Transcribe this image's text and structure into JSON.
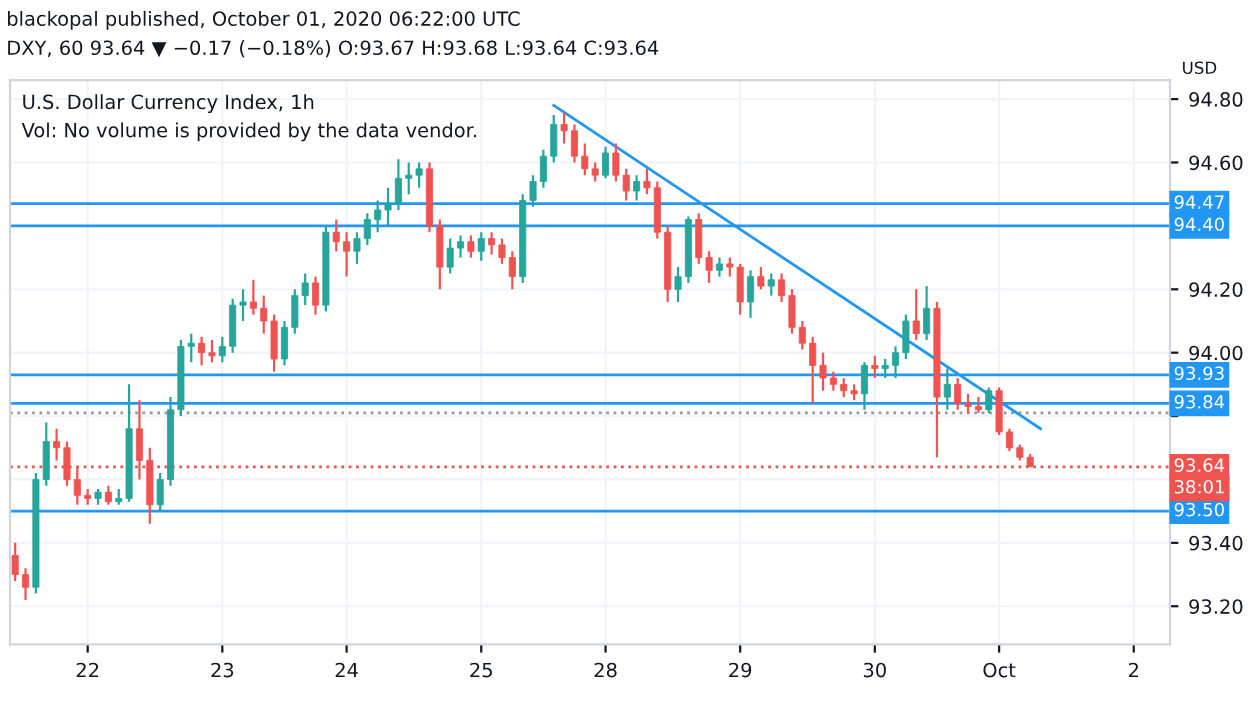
{
  "chart_data": {
    "type": "candlestick",
    "title": "U.S. Dollar Currency Index, 1h",
    "ylabel": "USD",
    "annotations": [
      "blackopal published, October 01, 2020 06:22:00 UTC",
      "DXY, 60 93.64 ▼ −0.17 (−0.18%) O:93.67 H:93.68 L:93.64 C:93.64",
      "Vol: No volume is provided by the data vendor.",
      "38:01"
    ],
    "categories": [
      null,
      null,
      null,
      null,
      null,
      null,
      null,
      "22",
      null,
      null,
      null,
      null,
      null,
      null,
      null,
      null,
      null,
      null,
      null,
      null,
      "23",
      null,
      null,
      null,
      null,
      null,
      null,
      null,
      null,
      null,
      null,
      null,
      "24",
      null,
      null,
      null,
      null,
      null,
      null,
      null,
      null,
      null,
      null,
      null,
      null,
      "25",
      null,
      null,
      null,
      null,
      null,
      null,
      null,
      null,
      null,
      null,
      null,
      "28",
      null,
      null,
      null,
      null,
      null,
      null,
      null,
      null,
      null,
      null,
      null,
      null,
      "29",
      null,
      null,
      null,
      null,
      null,
      null,
      null,
      null,
      null,
      null,
      null,
      null,
      "30",
      null,
      null,
      null,
      null,
      null,
      null,
      null,
      null,
      null,
      null,
      null,
      "Oct",
      null,
      null,
      null,
      null,
      null,
      null,
      null,
      null,
      null,
      null,
      null,
      null,
      "2",
      null,
      null,
      null
    ],
    "ohlc": [
      [
        93.36,
        93.4,
        93.28,
        93.3
      ],
      [
        93.3,
        93.32,
        93.22,
        93.26
      ],
      [
        93.26,
        93.62,
        93.24,
        93.6
      ],
      [
        93.6,
        93.78,
        93.58,
        93.72
      ],
      [
        93.72,
        93.76,
        93.66,
        93.7
      ],
      [
        93.7,
        93.72,
        93.58,
        93.6
      ],
      [
        93.6,
        93.64,
        93.52,
        93.55
      ],
      [
        93.55,
        93.57,
        93.52,
        93.54
      ],
      [
        93.54,
        93.57,
        93.52,
        93.56
      ],
      [
        93.56,
        93.58,
        93.52,
        93.53
      ],
      [
        93.53,
        93.57,
        93.52,
        93.54
      ],
      [
        93.54,
        93.9,
        93.53,
        93.76
      ],
      [
        93.76,
        93.85,
        93.6,
        93.66
      ],
      [
        93.66,
        93.7,
        93.46,
        93.52
      ],
      [
        93.52,
        93.62,
        93.5,
        93.6
      ],
      [
        93.6,
        93.86,
        93.58,
        93.82
      ],
      [
        93.82,
        94.04,
        93.8,
        94.02
      ],
      [
        94.02,
        94.06,
        93.97,
        94.03
      ],
      [
        94.03,
        94.05,
        93.96,
        94.0
      ],
      [
        94.0,
        94.04,
        93.97,
        93.99
      ],
      [
        93.99,
        94.05,
        93.97,
        94.02
      ],
      [
        94.02,
        94.17,
        94.0,
        94.15
      ],
      [
        94.15,
        94.2,
        94.1,
        94.16
      ],
      [
        94.16,
        94.23,
        94.12,
        94.14
      ],
      [
        94.14,
        94.18,
        94.06,
        94.1
      ],
      [
        94.1,
        94.12,
        93.94,
        93.98
      ],
      [
        93.98,
        94.1,
        93.96,
        94.08
      ],
      [
        94.08,
        94.2,
        94.06,
        94.18
      ],
      [
        94.18,
        94.25,
        94.15,
        94.22
      ],
      [
        94.22,
        94.24,
        94.12,
        94.15
      ],
      [
        94.15,
        94.4,
        94.13,
        94.38
      ],
      [
        94.38,
        94.42,
        94.32,
        94.35
      ],
      [
        94.35,
        94.38,
        94.24,
        94.32
      ],
      [
        94.32,
        94.38,
        94.28,
        94.36
      ],
      [
        94.36,
        94.44,
        94.34,
        94.42
      ],
      [
        94.42,
        94.48,
        94.38,
        94.45
      ],
      [
        94.45,
        94.52,
        94.4,
        94.47
      ],
      [
        94.47,
        94.61,
        94.45,
        94.55
      ],
      [
        94.55,
        94.6,
        94.5,
        94.56
      ],
      [
        94.56,
        94.6,
        94.52,
        94.58
      ],
      [
        94.58,
        94.6,
        94.38,
        94.4
      ],
      [
        94.4,
        94.42,
        94.2,
        94.27
      ],
      [
        94.27,
        94.36,
        94.25,
        94.33
      ],
      [
        94.33,
        94.37,
        94.3,
        94.35
      ],
      [
        94.35,
        94.37,
        94.3,
        94.32
      ],
      [
        94.32,
        94.38,
        94.29,
        94.36
      ],
      [
        94.36,
        94.38,
        94.31,
        94.34
      ],
      [
        94.34,
        94.36,
        94.28,
        94.3
      ],
      [
        94.3,
        94.32,
        94.2,
        94.24
      ],
      [
        94.24,
        94.5,
        94.22,
        94.48
      ],
      [
        94.48,
        94.56,
        94.46,
        94.54
      ],
      [
        94.54,
        94.64,
        94.52,
        94.62
      ],
      [
        94.62,
        94.75,
        94.6,
        94.72
      ],
      [
        94.72,
        94.76,
        94.66,
        94.7
      ],
      [
        94.7,
        94.72,
        94.6,
        94.62
      ],
      [
        94.62,
        94.66,
        94.56,
        94.58
      ],
      [
        94.58,
        94.6,
        94.54,
        94.56
      ],
      [
        94.56,
        94.65,
        94.55,
        94.63
      ],
      [
        94.63,
        94.66,
        94.54,
        94.56
      ],
      [
        94.56,
        94.58,
        94.48,
        94.51
      ],
      [
        94.51,
        94.56,
        94.48,
        94.54
      ],
      [
        94.54,
        94.58,
        94.5,
        94.52
      ],
      [
        94.52,
        94.54,
        94.36,
        94.38
      ],
      [
        94.38,
        94.4,
        94.16,
        94.2
      ],
      [
        94.2,
        94.27,
        94.16,
        94.24
      ],
      [
        94.24,
        94.43,
        94.22,
        94.42
      ],
      [
        94.42,
        94.44,
        94.28,
        94.3
      ],
      [
        94.3,
        94.32,
        94.22,
        94.26
      ],
      [
        94.26,
        94.3,
        94.24,
        94.28
      ],
      [
        94.28,
        94.3,
        94.24,
        94.27
      ],
      [
        94.27,
        94.28,
        94.12,
        94.16
      ],
      [
        94.16,
        94.26,
        94.11,
        94.24
      ],
      [
        94.24,
        94.27,
        94.2,
        94.21
      ],
      [
        94.21,
        94.25,
        94.18,
        94.23
      ],
      [
        94.23,
        94.25,
        94.16,
        94.18
      ],
      [
        94.18,
        94.2,
        94.06,
        94.08
      ],
      [
        94.08,
        94.1,
        94.01,
        94.03
      ],
      [
        94.03,
        94.05,
        93.84,
        93.96
      ],
      [
        93.96,
        94.0,
        93.88,
        93.92
      ],
      [
        93.92,
        93.94,
        93.88,
        93.9
      ],
      [
        93.9,
        93.92,
        93.86,
        93.88
      ],
      [
        93.88,
        93.9,
        93.85,
        93.87
      ],
      [
        93.87,
        93.97,
        93.82,
        93.96
      ],
      [
        93.96,
        93.99,
        93.92,
        93.95
      ],
      [
        93.95,
        93.98,
        93.92,
        93.96
      ],
      [
        93.96,
        94.02,
        93.92,
        94.0
      ],
      [
        94.0,
        94.12,
        93.98,
        94.1
      ],
      [
        94.1,
        94.2,
        94.04,
        94.06
      ],
      [
        94.06,
        94.21,
        94.04,
        94.14
      ],
      [
        94.14,
        94.16,
        93.67,
        93.86
      ],
      [
        93.86,
        93.95,
        93.82,
        93.9
      ],
      [
        93.9,
        93.92,
        93.82,
        93.84
      ],
      [
        93.84,
        93.87,
        93.81,
        93.83
      ],
      [
        93.83,
        93.86,
        93.81,
        93.82
      ],
      [
        93.82,
        93.89,
        93.81,
        93.88
      ],
      [
        93.88,
        93.89,
        93.74,
        93.75
      ],
      [
        93.75,
        93.76,
        93.69,
        93.7
      ],
      [
        93.7,
        93.71,
        93.66,
        93.67
      ],
      [
        93.67,
        93.68,
        93.64,
        93.64
      ],
      null,
      null,
      null,
      null,
      null,
      null,
      null,
      null,
      null,
      null,
      null,
      null,
      null
    ],
    "series": [
      {
        "type": "line",
        "color": "#2196f3",
        "values": [
          null,
          null,
          null,
          null,
          null,
          null,
          null,
          null,
          null,
          null,
          null,
          null,
          null,
          null,
          null,
          null,
          null,
          null,
          null,
          null,
          null,
          null,
          null,
          null,
          null,
          null,
          null,
          null,
          null,
          null,
          null,
          null,
          null,
          null,
          null,
          null,
          null,
          null,
          null,
          null,
          null,
          null,
          null,
          null,
          null,
          null,
          null,
          null,
          null,
          null,
          null,
          null,
          94.78,
          null,
          null,
          null,
          null,
          null,
          null,
          null,
          null,
          null,
          null,
          null,
          null,
          null,
          null,
          null,
          null,
          null,
          null,
          null,
          null,
          null,
          null,
          null,
          null,
          null,
          null,
          null,
          null,
          null,
          null,
          null,
          null,
          null,
          null,
          null,
          null,
          null,
          null,
          null,
          null,
          null,
          null,
          null,
          null,
          null,
          null,
          93.76,
          null,
          null,
          null,
          null,
          null,
          null,
          null,
          null,
          null,
          null,
          null,
          null
        ]
      }
    ],
    "ref_lines": [
      {
        "axis": "y",
        "value": 94.47,
        "label": "94.47",
        "color": "#2196f3",
        "line_style": "solid"
      },
      {
        "axis": "y",
        "value": 94.4,
        "label": "94.40",
        "color": "#2196f3",
        "line_style": "solid"
      },
      {
        "axis": "y",
        "value": 93.93,
        "label": "93.93",
        "color": "#2196f3",
        "line_style": "solid"
      },
      {
        "axis": "y",
        "value": 93.84,
        "label": "93.84",
        "color": "#2196f3",
        "line_style": "solid"
      },
      {
        "axis": "y",
        "value": 93.81,
        "color": "#9598a1",
        "line_style": "dotted"
      },
      {
        "axis": "y",
        "value": 93.64,
        "label": "93.64",
        "color": "#ef5350",
        "line_style": "dotted"
      },
      {
        "axis": "y",
        "value": 93.5,
        "label": "93.50",
        "color": "#2196f3",
        "line_style": "solid"
      }
    ],
    "ylim": [
      93.08,
      94.86
    ],
    "yticks": [
      {
        "value": 93.2,
        "label": "93.20"
      },
      {
        "value": 93.4,
        "label": "93.40"
      },
      {
        "value": 93.6,
        "label": null
      },
      {
        "value": 93.8,
        "label": null
      },
      {
        "value": 94.0,
        "label": "94.00"
      },
      {
        "value": 94.2,
        "label": "94.20"
      },
      {
        "value": 94.4,
        "label": null
      },
      {
        "value": 94.6,
        "label": "94.60"
      },
      {
        "value": 94.8,
        "label": "94.80"
      }
    ],
    "grid": true
  }
}
